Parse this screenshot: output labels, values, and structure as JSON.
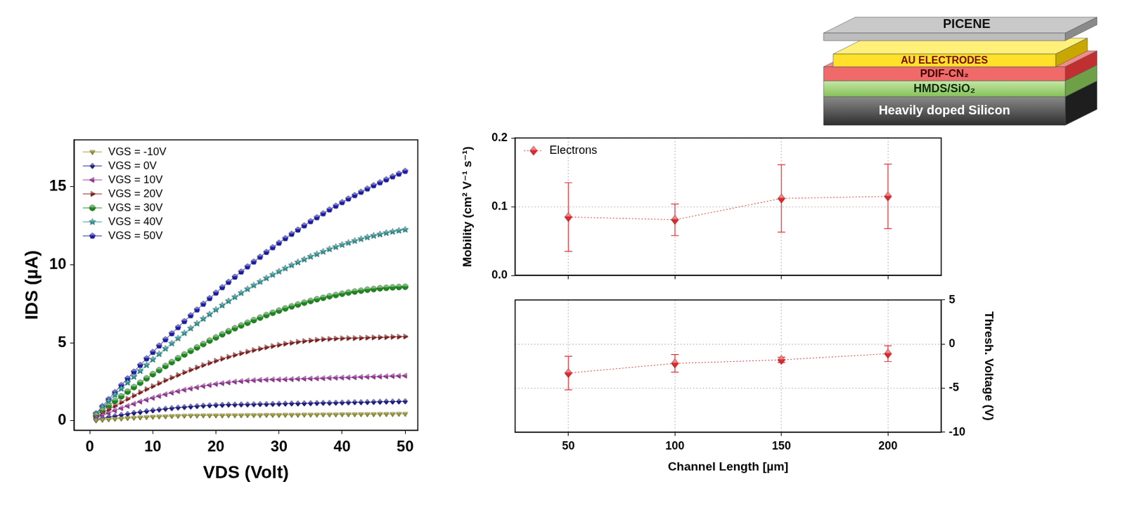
{
  "chart_data": [
    {
      "type": "line",
      "x_label": "VDS (Volt)",
      "y_label": "IDS (µA)",
      "x": [
        1,
        2,
        3,
        4,
        5,
        6,
        7,
        8,
        9,
        10,
        11,
        12,
        13,
        14,
        15,
        16,
        17,
        18,
        19,
        20,
        21,
        22,
        23,
        24,
        25,
        26,
        27,
        28,
        29,
        30,
        31,
        32,
        33,
        34,
        35,
        36,
        37,
        38,
        39,
        40,
        41,
        42,
        43,
        44,
        45,
        46,
        47,
        48,
        49,
        50
      ],
      "xlim": [
        -2.5,
        52
      ],
      "xticks": [
        0,
        10,
        20,
        30,
        40,
        50
      ],
      "ylim": [
        -0.6,
        18
      ],
      "yticks": [
        0,
        5,
        10,
        15
      ],
      "grid": false,
      "legend": "upper left",
      "series": [
        {
          "name": "VGS = -10V",
          "color": "#9a9a2e",
          "marker": "triangle_down",
          "line_style": "solid",
          "values": [
            0.03,
            0.07,
            0.1,
            0.13,
            0.15,
            0.18,
            0.2,
            0.22,
            0.24,
            0.26,
            0.28,
            0.29,
            0.31,
            0.32,
            0.33,
            0.34,
            0.34,
            0.35,
            0.35,
            0.35,
            0.35,
            0.36,
            0.36,
            0.36,
            0.37,
            0.37,
            0.37,
            0.38,
            0.38,
            0.38,
            0.39,
            0.39,
            0.39,
            0.4,
            0.4,
            0.4,
            0.41,
            0.41,
            0.41,
            0.42,
            0.42,
            0.42,
            0.43,
            0.43,
            0.43,
            0.44,
            0.44,
            0.44,
            0.45,
            0.45
          ]
        },
        {
          "name": "VGS = 0V",
          "color": "#1a1a8c",
          "marker": "diamond",
          "line_style": "solid",
          "values": [
            0.08,
            0.16,
            0.24,
            0.31,
            0.38,
            0.44,
            0.51,
            0.56,
            0.62,
            0.67,
            0.72,
            0.77,
            0.81,
            0.85,
            0.88,
            0.91,
            0.94,
            0.97,
            0.99,
            1.01,
            1.02,
            1.04,
            1.04,
            1.05,
            1.05,
            1.06,
            1.07,
            1.07,
            1.08,
            1.09,
            1.1,
            1.11,
            1.11,
            1.12,
            1.13,
            1.14,
            1.15,
            1.15,
            1.16,
            1.17,
            1.18,
            1.19,
            1.19,
            1.2,
            1.21,
            1.22,
            1.23,
            1.23,
            1.24,
            1.25
          ]
        },
        {
          "name": "VGS = 10V",
          "color": "#a030a0",
          "marker": "triangle_left",
          "line_style": "solid",
          "values": [
            0.17,
            0.34,
            0.5,
            0.66,
            0.81,
            0.95,
            1.09,
            1.23,
            1.35,
            1.47,
            1.59,
            1.7,
            1.8,
            1.9,
            1.99,
            2.07,
            2.15,
            2.23,
            2.29,
            2.36,
            2.41,
            2.46,
            2.51,
            2.54,
            2.58,
            2.6,
            2.62,
            2.64,
            2.65,
            2.65,
            2.66,
            2.67,
            2.69,
            2.7,
            2.71,
            2.72,
            2.73,
            2.75,
            2.76,
            2.77,
            2.78,
            2.79,
            2.81,
            2.82,
            2.83,
            2.84,
            2.85,
            2.87,
            2.88,
            2.89
          ]
        },
        {
          "name": "VGS = 20V",
          "color": "#8b1a1a",
          "marker": "triangle_right",
          "line_style": "solid",
          "values": [
            0.25,
            0.49,
            0.73,
            0.96,
            1.19,
            1.41,
            1.62,
            1.83,
            2.03,
            2.22,
            2.41,
            2.6,
            2.77,
            2.94,
            3.11,
            3.27,
            3.42,
            3.57,
            3.71,
            3.85,
            3.98,
            4.1,
            4.22,
            4.33,
            4.43,
            4.53,
            4.62,
            4.71,
            4.79,
            4.87,
            4.94,
            5.0,
            5.06,
            5.11,
            5.15,
            5.19,
            5.23,
            5.25,
            5.27,
            5.29,
            5.3,
            5.3,
            5.31,
            5.33,
            5.34,
            5.35,
            5.36,
            5.38,
            5.39,
            5.4
          ]
        },
        {
          "name": "VGS = 30V",
          "color": "#1a8a1a",
          "marker": "circle",
          "line_style": "solid",
          "values": [
            0.33,
            0.65,
            0.96,
            1.27,
            1.57,
            1.87,
            2.16,
            2.44,
            2.72,
            2.99,
            3.25,
            3.51,
            3.76,
            4.01,
            4.25,
            4.48,
            4.7,
            4.92,
            5.14,
            5.34,
            5.54,
            5.74,
            5.93,
            6.11,
            6.28,
            6.45,
            6.61,
            6.77,
            6.92,
            7.06,
            7.2,
            7.33,
            7.45,
            7.57,
            7.68,
            7.79,
            7.88,
            7.98,
            8.06,
            8.14,
            8.22,
            8.28,
            8.34,
            8.4,
            8.44,
            8.49,
            8.52,
            8.55,
            8.57,
            8.59
          ]
        },
        {
          "name": "VGS = 40V",
          "color": "#2a9a9a",
          "marker": "star",
          "line_style": "solid",
          "values": [
            0.43,
            0.85,
            1.26,
            1.66,
            2.06,
            2.45,
            2.83,
            3.2,
            3.57,
            3.93,
            4.28,
            4.63,
            4.96,
            5.29,
            5.62,
            5.93,
            6.24,
            6.54,
            6.83,
            7.12,
            7.4,
            7.67,
            7.93,
            8.19,
            8.44,
            8.68,
            8.91,
            9.14,
            9.36,
            9.57,
            9.77,
            9.97,
            10.16,
            10.34,
            10.52,
            10.68,
            10.84,
            11.0,
            11.14,
            11.28,
            11.41,
            11.53,
            11.65,
            11.76,
            11.86,
            11.95,
            12.04,
            12.12,
            12.19,
            12.25
          ]
        },
        {
          "name": "VGS = 50V",
          "color": "#1a1ab0",
          "marker": "pentagon",
          "line_style": "solid",
          "values": [
            0.47,
            0.93,
            1.38,
            1.83,
            2.28,
            2.71,
            3.14,
            3.57,
            3.99,
            4.4,
            4.81,
            5.21,
            5.6,
            5.99,
            6.38,
            6.75,
            7.12,
            7.49,
            7.85,
            8.2,
            8.55,
            8.89,
            9.22,
            9.55,
            9.88,
            10.19,
            10.5,
            10.81,
            11.11,
            11.4,
            11.69,
            11.97,
            12.24,
            12.51,
            12.78,
            13.03,
            13.28,
            13.53,
            13.77,
            14.0,
            14.23,
            14.45,
            14.66,
            14.87,
            15.08,
            15.27,
            15.46,
            15.65,
            15.83,
            16.0
          ]
        }
      ]
    },
    {
      "type": "line",
      "y_label": "Mobility (cm² V⁻¹ s⁻¹)",
      "x": [
        50,
        100,
        150,
        200
      ],
      "xlim": [
        25,
        225
      ],
      "xticks": [
        50,
        100,
        150,
        200
      ],
      "ylim": [
        0,
        0.2
      ],
      "yticks": [
        {
          "value": 0,
          "label": "0.0"
        },
        0.1,
        0.2
      ],
      "grid": true,
      "legend": "upper left",
      "tick_labels": "y",
      "series": [
        {
          "name": "Electrons",
          "color": "#e3262b",
          "marker": "diamond",
          "line_style": "dotted",
          "values": [
            0.085,
            0.081,
            0.112,
            0.115
          ],
          "errors": [
            0.05,
            0.023,
            0.049,
            0.047
          ]
        }
      ]
    },
    {
      "type": "line",
      "x_label": "Channel Length [µm]",
      "y2_label": "Thresh. Voltage (V)",
      "x": [
        50,
        100,
        150,
        200
      ],
      "xlim": [
        25,
        225
      ],
      "xticks": [
        50,
        100,
        150,
        200
      ],
      "y2lim": [
        -10,
        5
      ],
      "y2ticks": [
        -10,
        -5,
        0,
        5
      ],
      "grid": true,
      "series": [
        {
          "color": "#e3262b",
          "marker": "diamond",
          "line_style": "dotted",
          "axis": "y2",
          "values": [
            -3.3,
            -2.2,
            -1.8,
            -1.1
          ],
          "errors": [
            1.9,
            1.0,
            0.3,
            0.9
          ]
        }
      ]
    }
  ],
  "diagram": {
    "layers": [
      "PICENE",
      "AU ELECTRODES",
      "PDIF-CN₂",
      "HMDS/SiO₂",
      "Heavily doped Silicon"
    ]
  }
}
